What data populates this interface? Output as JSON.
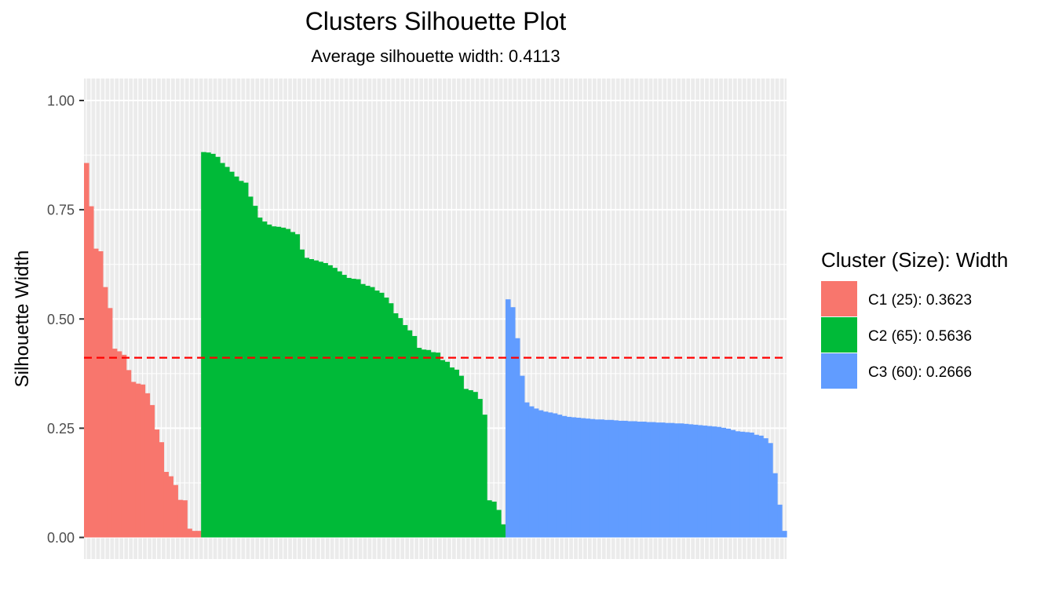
{
  "chart_data": {
    "type": "bar",
    "title": "Clusters Silhouette Plot",
    "subtitle": "Average silhouette width: 0.4113",
    "xlabel": "",
    "ylabel": "Silhouette Width",
    "ylim": [
      0,
      1.04
    ],
    "yticks": [
      "0.00",
      "0.25",
      "0.50",
      "0.75",
      "1.00"
    ],
    "ytick_values": [
      0,
      0.25,
      0.5,
      0.75,
      1.0
    ],
    "average_line": 0.4113,
    "average_line_color": "#FF0000",
    "grid": true,
    "legend": {
      "title": "Cluster (Size): Width",
      "placement": "right",
      "entries": [
        {
          "label": "C1 (25): 0.3623",
          "color": "#F8766D"
        },
        {
          "label": "C2 (65): 0.5636",
          "color": "#00BA38"
        },
        {
          "label": "C3 (60): 0.2666",
          "color": "#619CFF"
        }
      ]
    },
    "series": [
      {
        "cluster": "C1",
        "color": "#F8766D",
        "values": [
          0.857,
          0.758,
          0.661,
          0.655,
          0.573,
          0.525,
          0.432,
          0.426,
          0.418,
          0.383,
          0.356,
          0.352,
          0.35,
          0.33,
          0.303,
          0.247,
          0.218,
          0.15,
          0.14,
          0.12,
          0.086,
          0.085,
          0.02,
          0.015,
          0.015
        ]
      },
      {
        "cluster": "C2",
        "color": "#00BA38",
        "values": [
          0.882,
          0.881,
          0.878,
          0.871,
          0.857,
          0.848,
          0.837,
          0.826,
          0.816,
          0.812,
          0.78,
          0.759,
          0.732,
          0.723,
          0.716,
          0.712,
          0.711,
          0.709,
          0.706,
          0.699,
          0.694,
          0.659,
          0.64,
          0.637,
          0.634,
          0.631,
          0.628,
          0.623,
          0.617,
          0.609,
          0.601,
          0.594,
          0.592,
          0.591,
          0.58,
          0.576,
          0.573,
          0.565,
          0.56,
          0.549,
          0.536,
          0.513,
          0.502,
          0.486,
          0.474,
          0.461,
          0.434,
          0.43,
          0.429,
          0.424,
          0.423,
          0.406,
          0.402,
          0.389,
          0.384,
          0.37,
          0.34,
          0.337,
          0.333,
          0.317,
          0.281,
          0.085,
          0.082,
          0.063,
          0.03
        ]
      },
      {
        "cluster": "C3",
        "color": "#619CFF",
        "values": [
          0.545,
          0.527,
          0.456,
          0.37,
          0.309,
          0.3,
          0.295,
          0.291,
          0.288,
          0.286,
          0.284,
          0.281,
          0.278,
          0.276,
          0.275,
          0.274,
          0.273,
          0.272,
          0.271,
          0.27,
          0.27,
          0.269,
          0.269,
          0.268,
          0.267,
          0.267,
          0.266,
          0.266,
          0.265,
          0.265,
          0.264,
          0.264,
          0.263,
          0.263,
          0.262,
          0.262,
          0.261,
          0.261,
          0.26,
          0.259,
          0.258,
          0.257,
          0.256,
          0.255,
          0.254,
          0.253,
          0.251,
          0.249,
          0.246,
          0.243,
          0.242,
          0.241,
          0.24,
          0.235,
          0.233,
          0.227,
          0.216,
          0.147,
          0.075,
          0.015
        ]
      }
    ]
  }
}
